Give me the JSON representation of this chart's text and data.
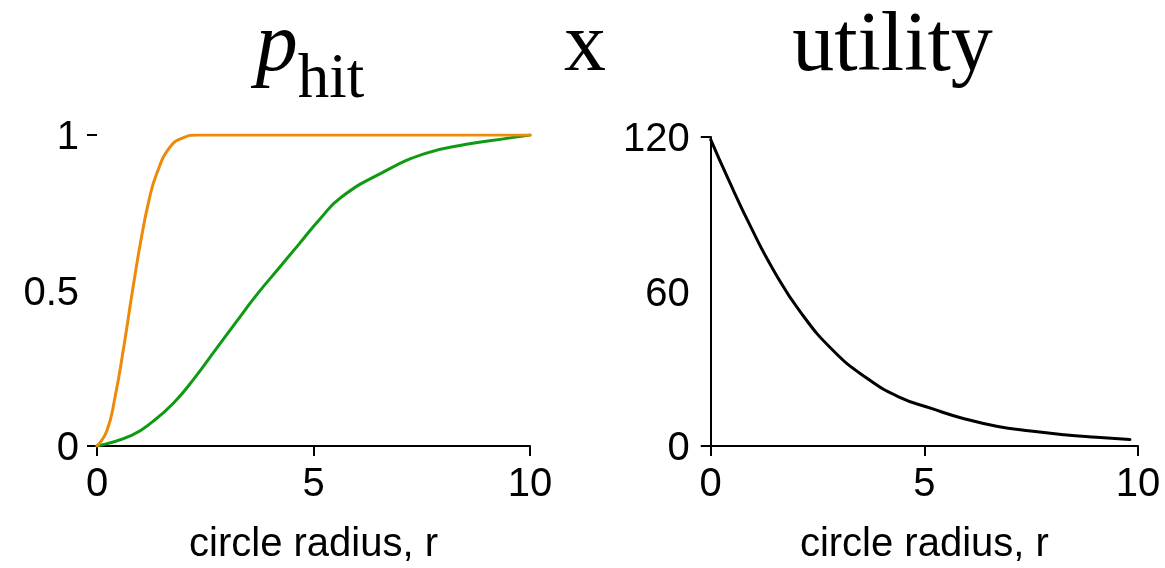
{
  "chart_data": [
    {
      "type": "line",
      "title": "p$_{hit}$",
      "xlabel": "circle radius, r",
      "annotations": [
        "x"
      ],
      "marker": "none",
      "xlim": [
        0,
        10
      ],
      "xticks": [
        0,
        5,
        10
      ],
      "ylim": [
        0,
        1
      ],
      "yticks": [
        0,
        0.5,
        1
      ],
      "series": [
        {
          "color": "#0f9a14",
          "x": [
            0,
            0.81,
            1.3,
            1.78,
            2.26,
            2.74,
            3.22,
            3.71,
            4.19,
            4.67,
            5.15,
            5.64,
            6.6,
            7.57,
            8.53,
            9.5,
            10
          ],
          "values": [
            0,
            0.035,
            0.08,
            0.14,
            0.22,
            0.31,
            0.4,
            0.49,
            0.57,
            0.65,
            0.73,
            0.8,
            0.88,
            0.94,
            0.97,
            0.99,
            1
          ]
        },
        {
          "color": "#ee8a0a",
          "x": [
            0,
            0.23,
            0.42,
            0.62,
            0.81,
            1.0,
            1.2,
            1.39,
            1.68,
            1.97,
            2.35,
            3.5,
            10
          ],
          "values": [
            0,
            0.05,
            0.16,
            0.32,
            0.49,
            0.65,
            0.79,
            0.88,
            0.96,
            0.99,
            1,
            1,
            1
          ]
        }
      ]
    },
    {
      "type": "line",
      "title": "utility",
      "xlabel": "circle radius, r",
      "marker": "none",
      "xlim": [
        0,
        10
      ],
      "xticks": [
        0,
        5,
        10
      ],
      "ylim": [
        0,
        120
      ],
      "yticks": [
        0,
        60,
        120
      ],
      "series": [
        {
          "color": "#000000",
          "x": [
            0,
            0.4,
            0.94,
            1.48,
            2.1,
            2.87,
            3.64,
            4.41,
            5.18,
            5.95,
            6.72,
            7.49,
            8.27,
            9.03,
            9.81
          ],
          "values": [
            119,
            104,
            85,
            68,
            52,
            37,
            26.5,
            19,
            14.5,
            10.5,
            7.6,
            5.8,
            4.4,
            3.4,
            2.5
          ]
        }
      ]
    }
  ]
}
